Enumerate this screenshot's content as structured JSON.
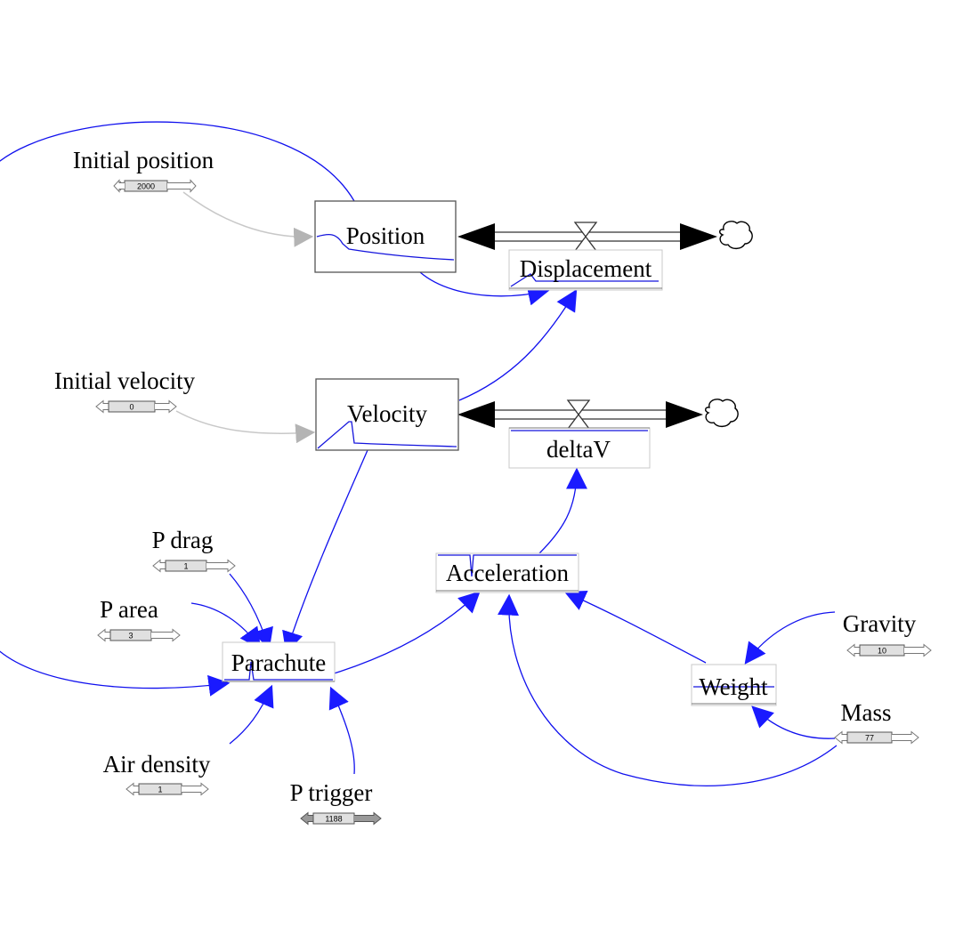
{
  "stocks": [
    {
      "id": "position",
      "label": "Position"
    },
    {
      "id": "velocity",
      "label": "Velocity"
    }
  ],
  "flows": [
    {
      "id": "displacement",
      "label": "Displacement"
    },
    {
      "id": "deltav",
      "label": "deltaV"
    }
  ],
  "auxiliaries": [
    {
      "id": "acceleration",
      "label": "Acceleration"
    },
    {
      "id": "parachute",
      "label": "Parachute"
    },
    {
      "id": "weight",
      "label": "Weight"
    }
  ],
  "constants": [
    {
      "id": "initial-position",
      "label": "Initial position",
      "value": "2000"
    },
    {
      "id": "initial-velocity",
      "label": "Initial velocity",
      "value": "0"
    },
    {
      "id": "p-drag",
      "label": "P drag",
      "value": "1"
    },
    {
      "id": "p-area",
      "label": "P area",
      "value": "3"
    },
    {
      "id": "air-density",
      "label": "Air density",
      "value": "1"
    },
    {
      "id": "p-trigger",
      "label": "P trigger",
      "value": "1188"
    },
    {
      "id": "gravity",
      "label": "Gravity",
      "value": "10"
    },
    {
      "id": "mass",
      "label": "Mass",
      "value": "77"
    }
  ],
  "colors": {
    "link": "#1010ee",
    "initial_link": "#c8c8c8",
    "arrow": "#1a1aff"
  }
}
